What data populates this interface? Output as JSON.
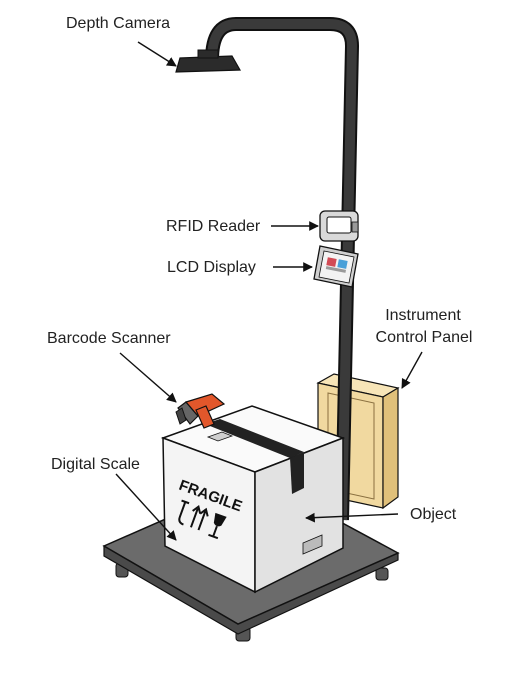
{
  "labels": {
    "depth_camera": "Depth Camera",
    "rfid_reader": "RFID Reader",
    "lcd_display": "LCD Display",
    "instrument_panel_line1": "Instrument",
    "instrument_panel_line2": "Control Panel",
    "barcode_scanner": "Barcode Scanner",
    "digital_scale": "Digital Scale",
    "object": "Object"
  },
  "box_text": "FRAGILE",
  "colors": {
    "outline": "#111111",
    "pole": "#3a3a3a",
    "scale_top": "#6b6b6b",
    "scale_edge": "#4a4a4a",
    "box_front": "#f4f4f4",
    "box_side": "#e2e2e2",
    "box_top": "#fafafa",
    "tape": "#222222",
    "cabinet": "#f1d9a0",
    "cabinet_side": "#e0c07a",
    "scanner_orange": "#e2572b",
    "camera": "#2b2b2b"
  }
}
